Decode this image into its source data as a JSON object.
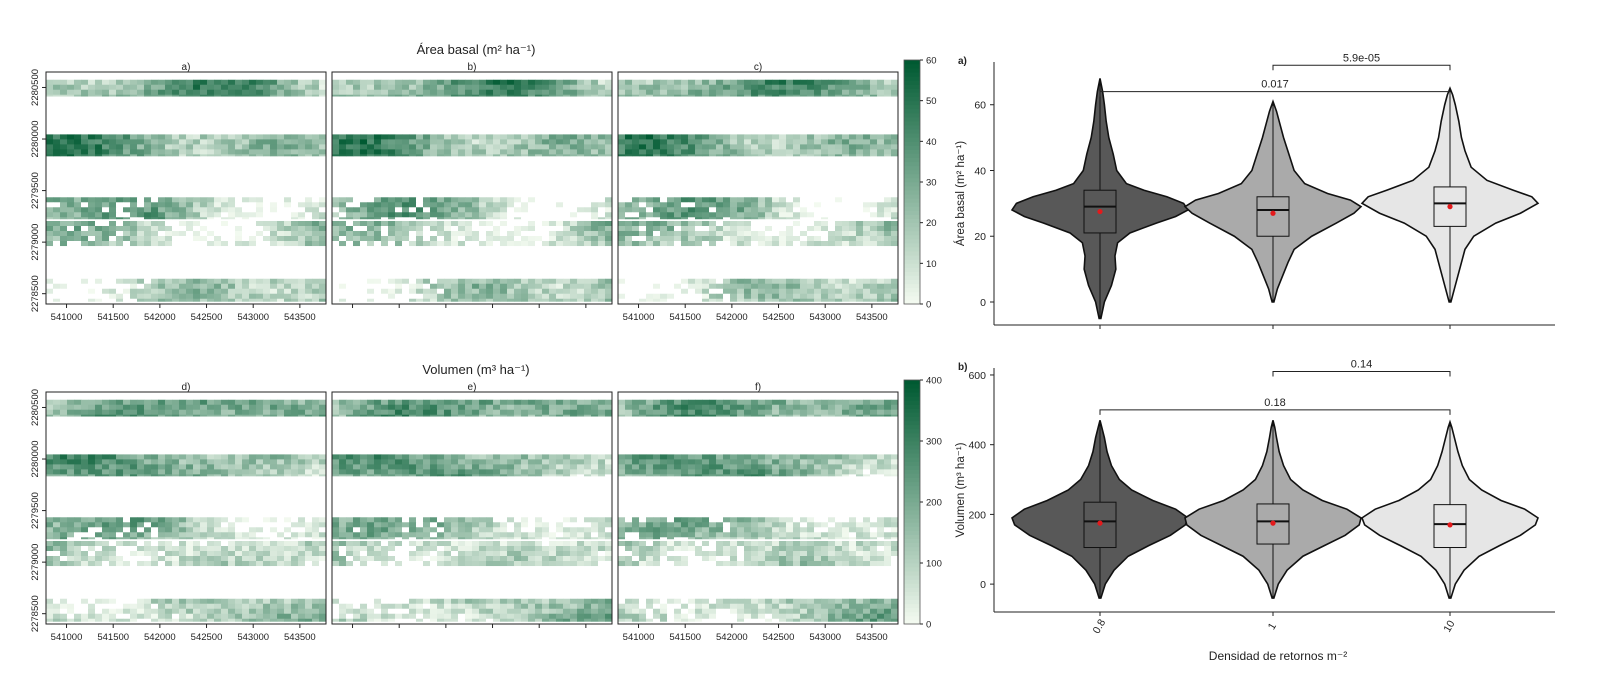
{
  "chart_data": [
    {
      "type": "heatmap",
      "title": "Área basal (m² ha⁻¹)",
      "panels": [
        {
          "label": "a)"
        },
        {
          "label": "b)"
        },
        {
          "label": "c)"
        }
      ],
      "x_ticks": [
        541000,
        541500,
        542000,
        542500,
        543000,
        543500
      ],
      "y_ticks": [
        2278500,
        2279000,
        2279500,
        2280000,
        2280500
      ],
      "colorbar": {
        "min": 0,
        "max": 60,
        "ticks": [
          0,
          10,
          20,
          30,
          40,
          50,
          60
        ],
        "color_low": "#f3faf0",
        "color_high": "#005a32"
      },
      "strips": [
        {
          "y_from": 2280415,
          "y_to": 2280575
        },
        {
          "y_from": 2279835,
          "y_to": 2280045
        },
        {
          "y_from": 2279225,
          "y_to": 2279435
        },
        {
          "y_from": 2278965,
          "y_to": 2279205
        },
        {
          "y_from": 2278425,
          "y_to": 2278645
        }
      ],
      "x_range": [
        540780,
        543780
      ],
      "y_range": [
        2278400,
        2280650
      ]
    },
    {
      "type": "heatmap",
      "title": "Volumen (m³ ha⁻¹)",
      "panels": [
        {
          "label": "d)"
        },
        {
          "label": "e)"
        },
        {
          "label": "f)"
        }
      ],
      "x_ticks": [
        541000,
        541500,
        542000,
        542500,
        543000,
        543500
      ],
      "y_ticks": [
        2278500,
        2279000,
        2279500,
        2280000,
        2280500
      ],
      "colorbar": {
        "min": 0,
        "max": 400,
        "ticks": [
          0,
          100,
          200,
          300,
          400
        ],
        "color_low": "#f3faf0",
        "color_high": "#005a32"
      },
      "strips": [
        {
          "y_from": 2280415,
          "y_to": 2280575
        },
        {
          "y_from": 2279835,
          "y_to": 2280045
        },
        {
          "y_from": 2279225,
          "y_to": 2279435
        },
        {
          "y_from": 2278965,
          "y_to": 2279205
        },
        {
          "y_from": 2278425,
          "y_to": 2278645
        }
      ],
      "x_range": [
        540780,
        543780
      ],
      "y_range": [
        2278400,
        2280650
      ]
    },
    {
      "type": "violin",
      "panel_label": "a)",
      "ylabel": "Área basal (m² ha⁻¹)",
      "ylim": [
        -7,
        73
      ],
      "y_ticks": [
        0,
        20,
        40,
        60
      ],
      "categories": [
        "0.8",
        "1",
        "10"
      ],
      "fill_colors": [
        "#585858",
        "#aaaaaa",
        "#e6e6e6"
      ],
      "violins": [
        {
          "category": "0.8",
          "min": -5,
          "max": 68,
          "q1": 21,
          "median": 29,
          "q3": 34,
          "mean": 27.5,
          "profile": [
            [
              -5,
              0.01
            ],
            [
              0,
              0.05
            ],
            [
              5,
              0.13
            ],
            [
              10,
              0.18
            ],
            [
              14,
              0.17
            ],
            [
              18,
              0.2
            ],
            [
              21,
              0.34
            ],
            [
              24,
              0.64
            ],
            [
              26,
              0.86
            ],
            [
              28,
              1.0
            ],
            [
              30,
              0.95
            ],
            [
              32,
              0.76
            ],
            [
              34,
              0.5
            ],
            [
              36,
              0.3
            ],
            [
              40,
              0.19
            ],
            [
              45,
              0.15
            ],
            [
              50,
              0.1
            ],
            [
              55,
              0.07
            ],
            [
              60,
              0.05
            ],
            [
              64,
              0.03
            ],
            [
              68,
              0.0
            ]
          ]
        },
        {
          "category": "1",
          "min": 0,
          "max": 61,
          "q1": 20,
          "median": 28,
          "q3": 32,
          "mean": 27,
          "profile": [
            [
              0,
              0.01
            ],
            [
              4,
              0.05
            ],
            [
              8,
              0.11
            ],
            [
              12,
              0.17
            ],
            [
              16,
              0.24
            ],
            [
              20,
              0.44
            ],
            [
              24,
              0.72
            ],
            [
              27,
              0.92
            ],
            [
              29,
              1.0
            ],
            [
              31,
              0.88
            ],
            [
              33,
              0.62
            ],
            [
              36,
              0.36
            ],
            [
              40,
              0.24
            ],
            [
              45,
              0.18
            ],
            [
              50,
              0.12
            ],
            [
              55,
              0.07
            ],
            [
              58,
              0.04
            ],
            [
              61,
              0.0
            ]
          ]
        },
        {
          "category": "10",
          "min": 0,
          "max": 65,
          "q1": 23,
          "median": 30,
          "q3": 35,
          "mean": 29,
          "profile": [
            [
              0,
              0.01
            ],
            [
              4,
              0.05
            ],
            [
              8,
              0.09
            ],
            [
              12,
              0.13
            ],
            [
              16,
              0.17
            ],
            [
              20,
              0.27
            ],
            [
              24,
              0.52
            ],
            [
              27,
              0.8
            ],
            [
              30,
              1.0
            ],
            [
              32,
              0.93
            ],
            [
              34,
              0.72
            ],
            [
              37,
              0.42
            ],
            [
              41,
              0.24
            ],
            [
              46,
              0.17
            ],
            [
              50,
              0.13
            ],
            [
              55,
              0.1
            ],
            [
              60,
              0.06
            ],
            [
              63,
              0.03
            ],
            [
              65,
              0.0
            ]
          ]
        }
      ],
      "comparisons": [
        {
          "from": "0.8",
          "to": "10",
          "y": 64,
          "label": "0.017"
        },
        {
          "from": "1",
          "to": "10",
          "y": 72,
          "label": "5.9e-05"
        }
      ]
    },
    {
      "type": "violin",
      "panel_label": "b)",
      "ylabel": "Volumen (m³ ha⁻¹)",
      "xlabel": "Densidad de retornos m⁻²",
      "ylim": [
        -80,
        620
      ],
      "y_ticks": [
        0,
        200,
        400,
        600
      ],
      "categories": [
        "0.8",
        "1",
        "10"
      ],
      "fill_colors": [
        "#585858",
        "#aaaaaa",
        "#e6e6e6"
      ],
      "violins": [
        {
          "category": "0.8",
          "min": -40,
          "max": 470,
          "q1": 105,
          "median": 180,
          "q3": 235,
          "mean": 175,
          "profile": [
            [
              -40,
              0.01
            ],
            [
              0,
              0.06
            ],
            [
              40,
              0.16
            ],
            [
              80,
              0.32
            ],
            [
              110,
              0.55
            ],
            [
              140,
              0.8
            ],
            [
              170,
              0.97
            ],
            [
              190,
              1.0
            ],
            [
              215,
              0.86
            ],
            [
              240,
              0.6
            ],
            [
              270,
              0.36
            ],
            [
              300,
              0.22
            ],
            [
              340,
              0.13
            ],
            [
              380,
              0.08
            ],
            [
              420,
              0.05
            ],
            [
              450,
              0.02
            ],
            [
              470,
              0.0
            ]
          ]
        },
        {
          "category": "1",
          "min": -40,
          "max": 470,
          "q1": 115,
          "median": 180,
          "q3": 230,
          "mean": 175,
          "profile": [
            [
              -40,
              0.01
            ],
            [
              0,
              0.06
            ],
            [
              40,
              0.16
            ],
            [
              80,
              0.34
            ],
            [
              110,
              0.58
            ],
            [
              140,
              0.82
            ],
            [
              170,
              0.98
            ],
            [
              190,
              1.0
            ],
            [
              215,
              0.84
            ],
            [
              240,
              0.56
            ],
            [
              270,
              0.34
            ],
            [
              300,
              0.2
            ],
            [
              340,
              0.12
            ],
            [
              380,
              0.07
            ],
            [
              420,
              0.04
            ],
            [
              450,
              0.02
            ],
            [
              470,
              0.0
            ]
          ]
        },
        {
          "category": "10",
          "min": -40,
          "max": 465,
          "q1": 105,
          "median": 172,
          "q3": 228,
          "mean": 170,
          "profile": [
            [
              -40,
              0.01
            ],
            [
              0,
              0.06
            ],
            [
              40,
              0.16
            ],
            [
              80,
              0.33
            ],
            [
              110,
              0.56
            ],
            [
              140,
              0.8
            ],
            [
              170,
              0.97
            ],
            [
              190,
              1.0
            ],
            [
              215,
              0.85
            ],
            [
              240,
              0.58
            ],
            [
              270,
              0.36
            ],
            [
              300,
              0.22
            ],
            [
              340,
              0.14
            ],
            [
              380,
              0.09
            ],
            [
              420,
              0.05
            ],
            [
              450,
              0.02
            ],
            [
              465,
              0.0
            ]
          ]
        }
      ],
      "comparisons": [
        {
          "from": "0.8",
          "to": "10",
          "y": 500,
          "label": "0.18"
        },
        {
          "from": "1",
          "to": "10",
          "y": 610,
          "label": "0.14"
        }
      ]
    }
  ]
}
